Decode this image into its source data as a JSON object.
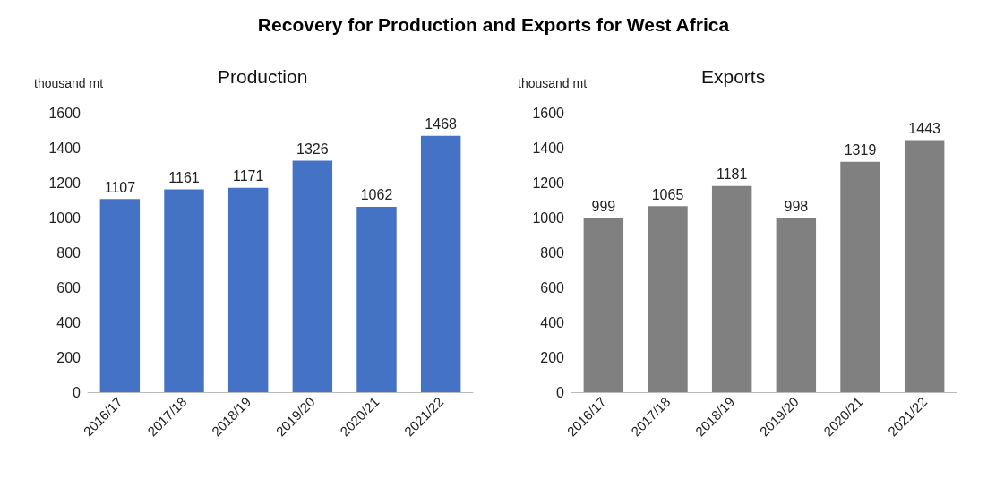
{
  "chart_data": [
    {
      "type": "bar",
      "title": "Recovery for Production and Exports for West Africa",
      "subtitle": "Production",
      "ylabel": "thousand mt",
      "categories": [
        "2016/17",
        "2017/18",
        "2018/19",
        "2019/20",
        "2020/21",
        "2021/22"
      ],
      "series": [
        {
          "color": "#4472c4",
          "values": [
            1107,
            1161,
            1171,
            1326,
            1062,
            1468
          ]
        }
      ],
      "ylim": [
        0,
        1600
      ],
      "yticks": [
        0,
        200,
        400,
        600,
        800,
        1000,
        1200,
        1400,
        1600
      ],
      "data_labels": true
    },
    {
      "type": "bar",
      "title": "Exports",
      "ylabel": "thousand mt",
      "categories": [
        "2016/17",
        "2017/18",
        "2018/19",
        "2019/20",
        "2020/21",
        "2021/22"
      ],
      "series": [
        {
          "color": "#808080",
          "values": [
            999,
            1065,
            1181,
            998,
            1319,
            1443
          ]
        }
      ],
      "ylim": [
        0,
        1600
      ],
      "yticks": [
        0,
        200,
        400,
        600,
        800,
        1000,
        1200,
        1400,
        1600
      ],
      "data_labels": true
    }
  ]
}
